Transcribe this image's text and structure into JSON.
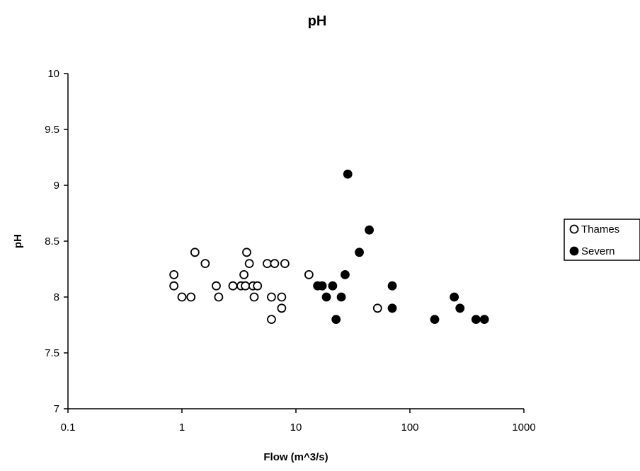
{
  "chart_data": {
    "type": "scatter",
    "title": "pH",
    "xlabel": "Flow (m^3/s)",
    "ylabel": "pH",
    "x_scale": "log",
    "xlim": [
      0.1,
      1000
    ],
    "ylim": [
      7,
      10
    ],
    "x_ticks": [
      0.1,
      1,
      10,
      100,
      1000
    ],
    "x_tick_labels": [
      "0.1",
      "1",
      "10",
      "100",
      "1000"
    ],
    "y_ticks": [
      7,
      7.5,
      8,
      8.5,
      9,
      9.5,
      10
    ],
    "y_tick_labels": [
      "7",
      "7.5",
      "8",
      "8.5",
      "9",
      "9.5",
      "10"
    ],
    "grid": false,
    "legend_position": "right",
    "series": [
      {
        "name": "Thames",
        "marker": "open-circle",
        "color": "#000000",
        "points": [
          [
            0.85,
            8.2
          ],
          [
            0.85,
            8.1
          ],
          [
            1.0,
            8.0
          ],
          [
            1.2,
            8.0
          ],
          [
            1.3,
            8.4
          ],
          [
            1.6,
            8.3
          ],
          [
            2.0,
            8.1
          ],
          [
            2.1,
            8.0
          ],
          [
            2.8,
            8.1
          ],
          [
            3.3,
            8.1
          ],
          [
            3.5,
            8.2
          ],
          [
            3.6,
            8.1
          ],
          [
            3.7,
            8.4
          ],
          [
            3.9,
            8.3
          ],
          [
            4.2,
            8.1
          ],
          [
            4.3,
            8.0
          ],
          [
            4.6,
            8.1
          ],
          [
            5.6,
            8.3
          ],
          [
            6.1,
            8.0
          ],
          [
            6.1,
            7.8
          ],
          [
            6.5,
            8.3
          ],
          [
            7.5,
            8.0
          ],
          [
            7.5,
            7.9
          ],
          [
            8.0,
            8.3
          ],
          [
            13.0,
            8.2
          ],
          [
            52.0,
            7.9
          ]
        ]
      },
      {
        "name": "Severn",
        "marker": "filled-circle",
        "color": "#000000",
        "points": [
          [
            15.5,
            8.1
          ],
          [
            17.0,
            8.1
          ],
          [
            18.5,
            8.0
          ],
          [
            21.0,
            8.1
          ],
          [
            22.5,
            7.8
          ],
          [
            25.0,
            8.0
          ],
          [
            27.0,
            8.2
          ],
          [
            28.5,
            9.1
          ],
          [
            36.0,
            8.4
          ],
          [
            44.0,
            8.6
          ],
          [
            70.0,
            8.1
          ],
          [
            70.0,
            7.9
          ],
          [
            165.0,
            7.8
          ],
          [
            245.0,
            8.0
          ],
          [
            275.0,
            7.9
          ],
          [
            380.0,
            7.8
          ],
          [
            450.0,
            7.8
          ]
        ]
      }
    ]
  }
}
